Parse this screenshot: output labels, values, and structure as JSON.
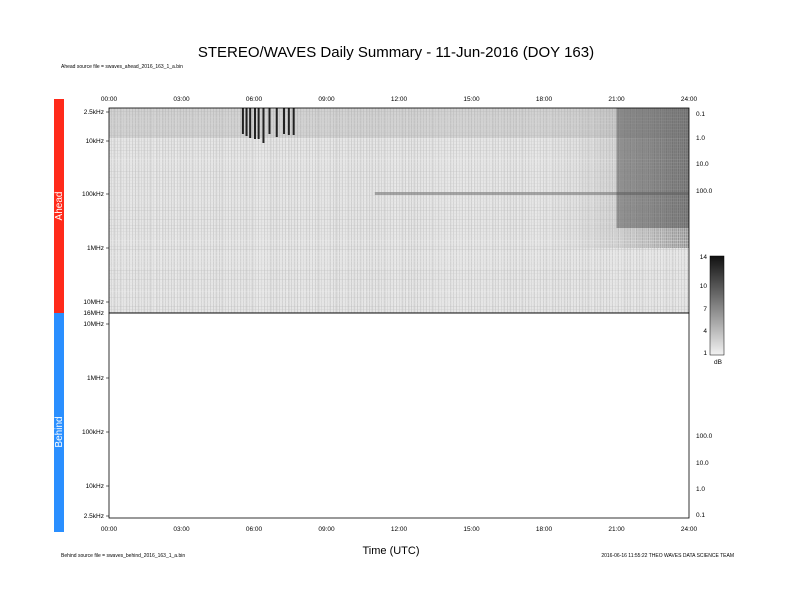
{
  "title": "STEREO/WAVES Daily Summary - 11-Jun-2016 (DOY 163)",
  "ahead_source": "Ahead source file = swaves_ahead_2016_163_1_a.bin",
  "behind_source": "Behind source file = swaves_behind_2016_163_1_a.bin",
  "credit": "2016-06-16 11:55:22 THEO WAVES DATA SCIENCE TEAM",
  "x_label": "Time (UTC)",
  "panel_labels": {
    "ahead": "Ahead",
    "behind": "Behind"
  },
  "colors": {
    "ahead": "#ff2a1a",
    "behind": "#2a8fff",
    "background": "#ffffff"
  },
  "chart_data": {
    "type": "heatmap",
    "x_ticks": [
      "00:00",
      "03:00",
      "06:00",
      "09:00",
      "12:00",
      "15:00",
      "18:00",
      "21:00",
      "24:00"
    ],
    "x_range_hours": [
      0,
      24
    ],
    "panels": [
      {
        "name": "Ahead",
        "y_ticks_left": [
          "2.5kHz",
          "10kHz",
          "100kHz",
          "1MHz",
          "10MHz",
          "16MHz"
        ],
        "y_ticks_right": [
          "0.1",
          "1.0",
          "10.0",
          "100.0"
        ],
        "has_data": true,
        "features": [
          {
            "kind": "radio bursts",
            "time_start": "05:30",
            "time_end": "07:45",
            "freq": "2.5kHz-10kHz"
          },
          {
            "kind": "enhanced background",
            "time_start": "21:00",
            "time_end": "24:00",
            "freq": "2.5kHz-1MHz"
          },
          {
            "kind": "narrowband line",
            "freq": "~100kHz",
            "time_start": "11:00",
            "time_end": "24:00"
          }
        ]
      },
      {
        "name": "Behind",
        "y_ticks_left": [
          "10MHz",
          "1MHz",
          "100kHz",
          "10kHz",
          "2.5kHz"
        ],
        "y_ticks_right": [
          "100.0",
          "10.0",
          "1.0",
          "0.1"
        ],
        "has_data": false
      }
    ],
    "colorbar": {
      "ticks": [
        "1",
        "4",
        "7",
        "10",
        "14"
      ],
      "range": [
        1,
        14
      ],
      "unit": "dB"
    }
  }
}
